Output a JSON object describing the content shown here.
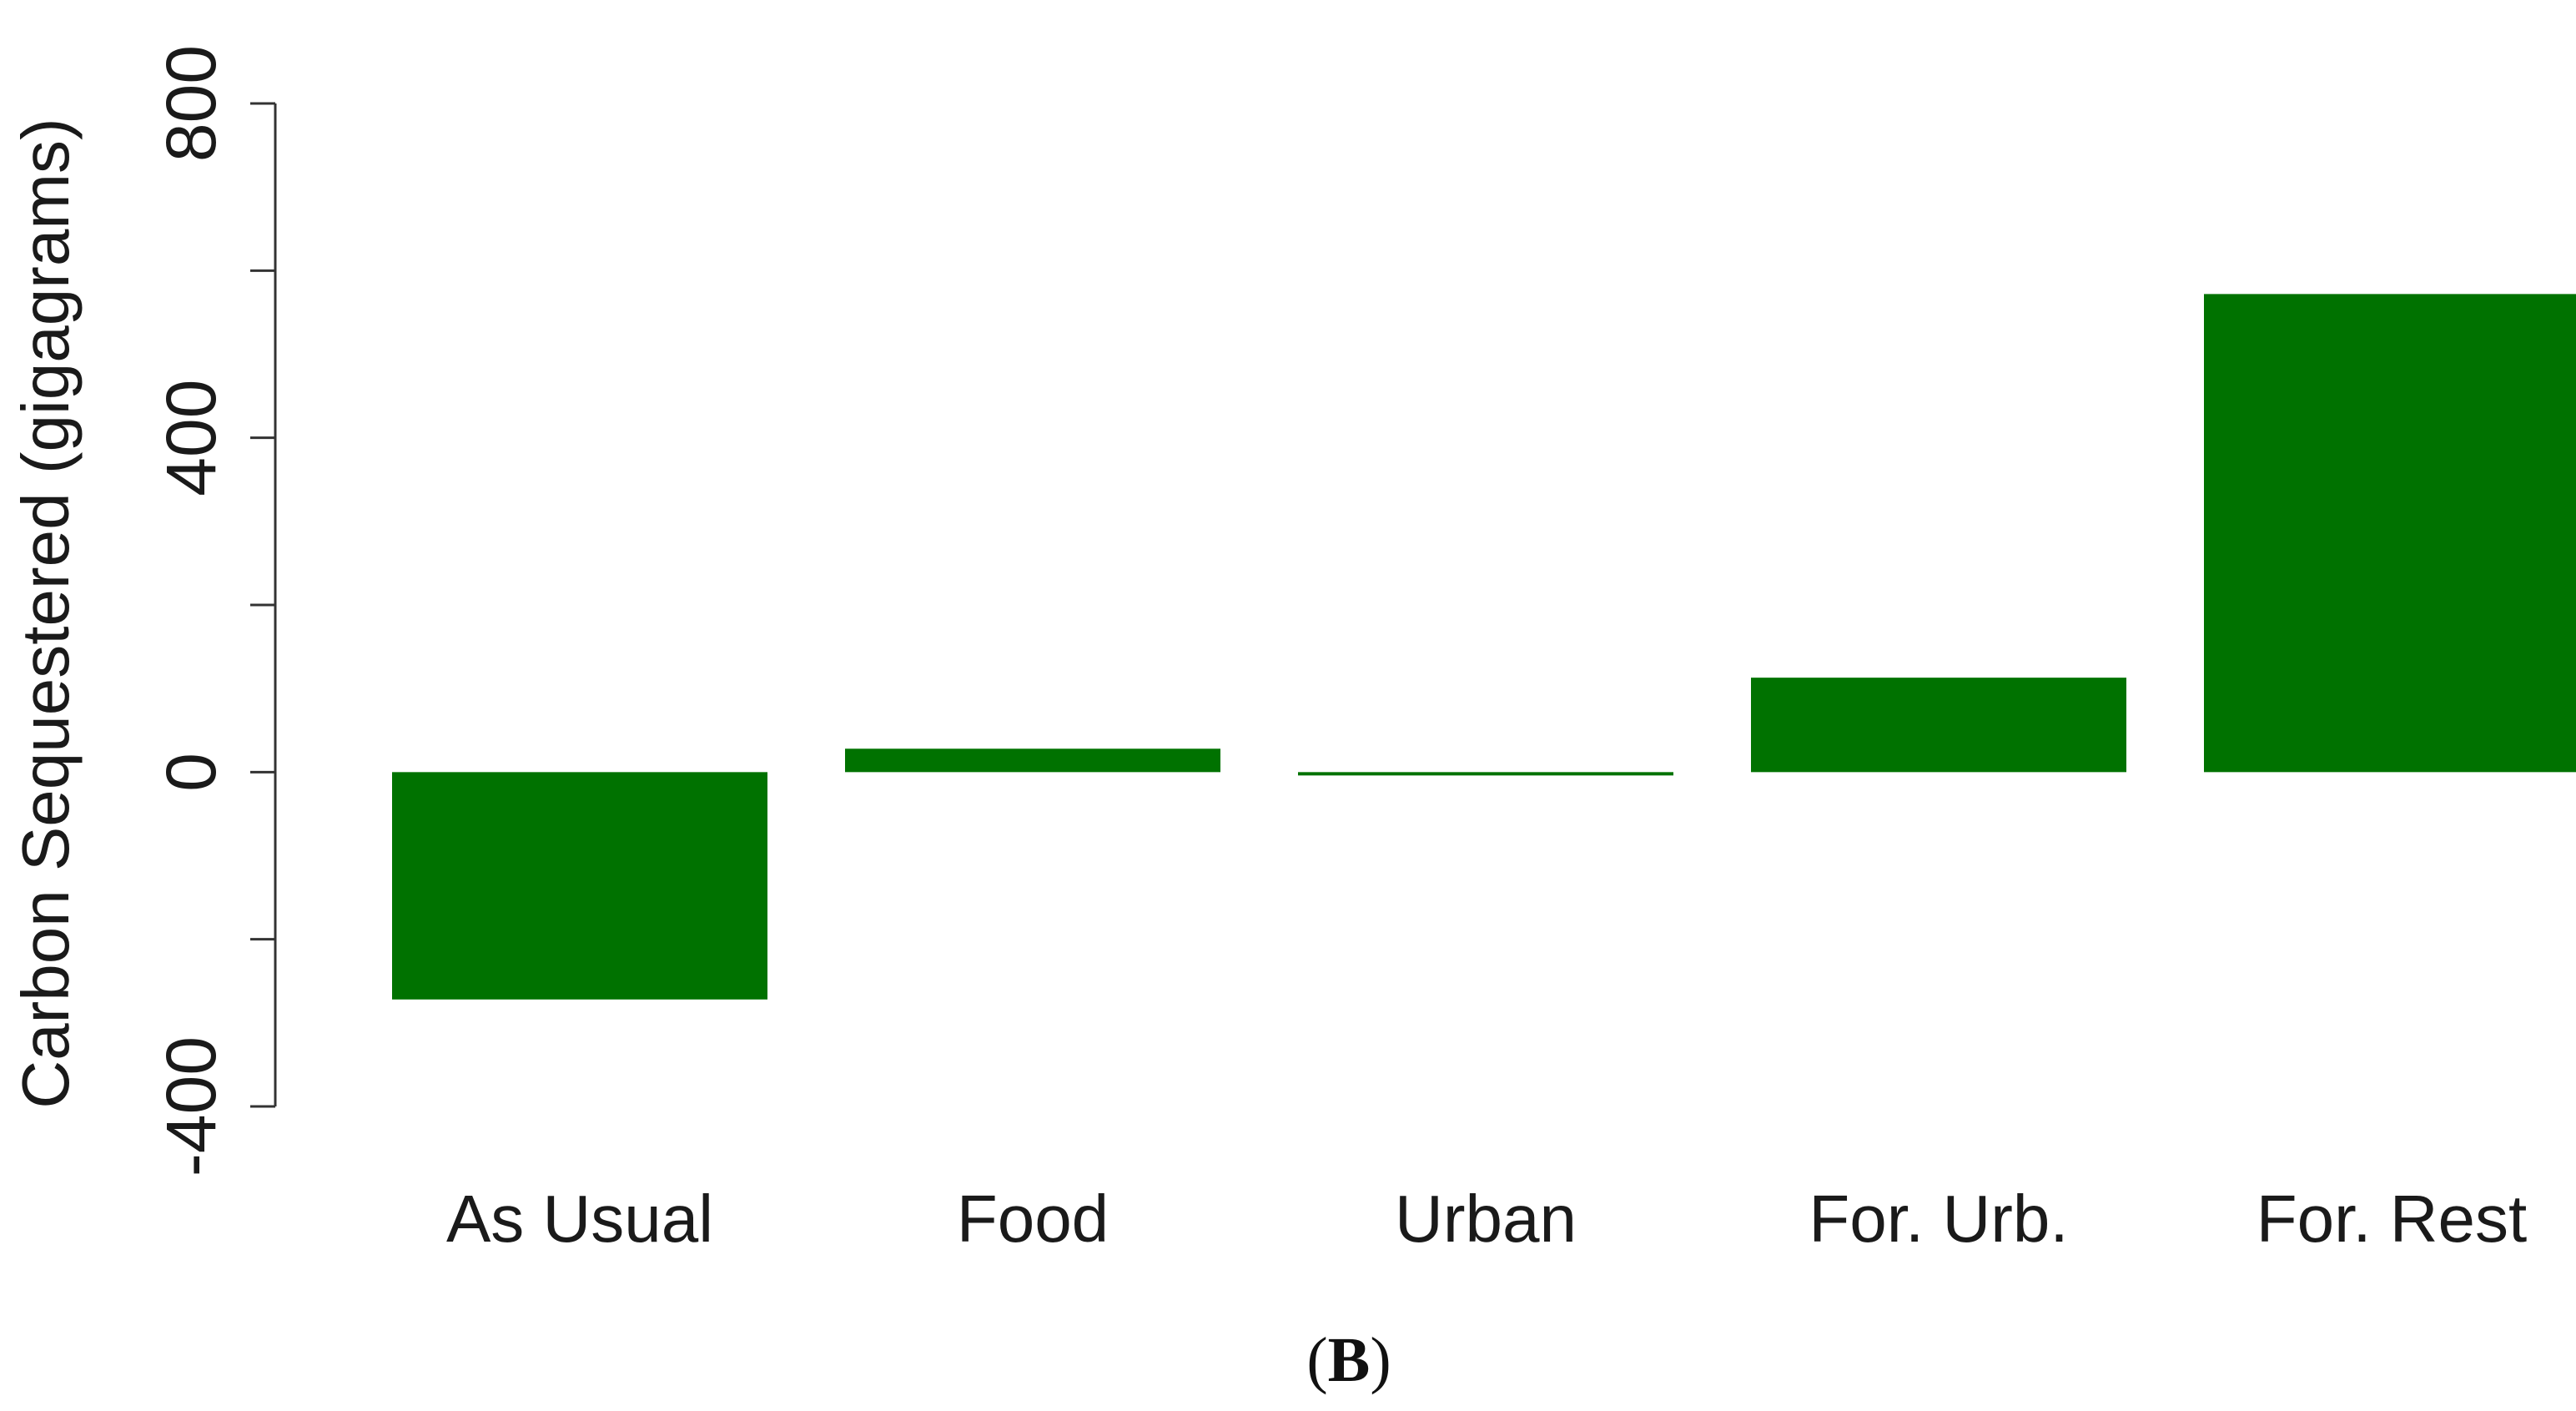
{
  "chart_data": {
    "type": "bar",
    "categories": [
      "As Usual",
      "Food",
      "Urban",
      "For. Urb.",
      "For. Rest"
    ],
    "values": [
      -272,
      28,
      -4,
      113,
      572
    ],
    "ylabel": "Carbon Sequestered (gigagrams)",
    "xlabel": "",
    "ylim": [
      -400,
      800
    ],
    "yticks": [
      -400,
      0,
      400,
      800
    ],
    "yticks_minor": [
      -200,
      200,
      600
    ],
    "grid": false,
    "bar_color": "#007200",
    "panel_label": {
      "open": "(",
      "letter": "B",
      "close": ")"
    }
  }
}
